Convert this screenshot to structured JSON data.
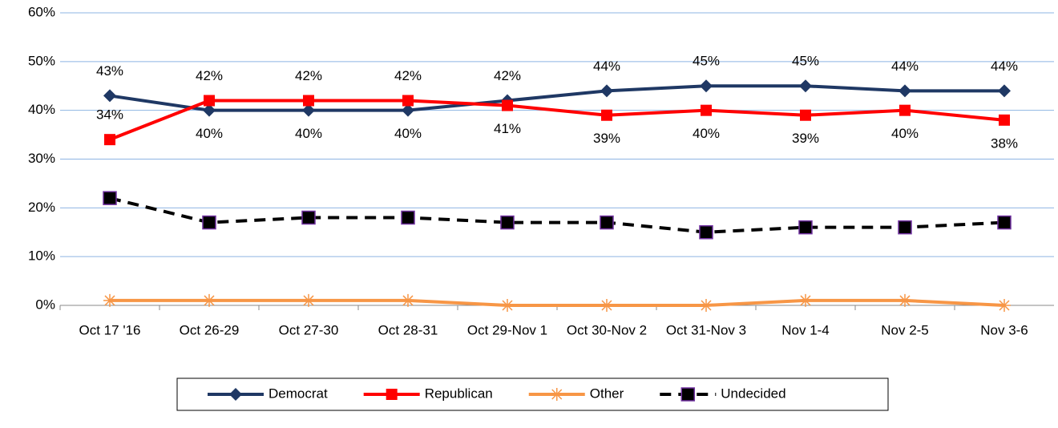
{
  "chart_data": {
    "type": "line",
    "categories": [
      "Oct 17 '16",
      "Oct 26-29",
      "Oct 27-30",
      "Oct 28-31",
      "Oct 29-Nov 1",
      "Oct 30-Nov 2",
      "Oct 31-Nov 3",
      "Nov 1-4",
      "Nov 2-5",
      "Nov 3-6"
    ],
    "series": [
      {
        "name": "Democrat",
        "color": "#1f3864",
        "marker": "diamond",
        "dashed": false,
        "values": [
          43,
          40,
          40,
          40,
          42,
          44,
          45,
          45,
          44,
          44
        ],
        "value_labels": [
          "43%",
          "40%",
          "40%",
          "40%",
          "42%",
          "44%",
          "45%",
          "45%",
          "44%",
          "44%"
        ]
      },
      {
        "name": "Republican",
        "color": "#ff0000",
        "marker": "square",
        "dashed": false,
        "values": [
          34,
          42,
          42,
          42,
          41,
          39,
          40,
          39,
          40,
          38
        ],
        "value_labels": [
          "34%",
          "42%",
          "42%",
          "42%",
          "41%",
          "39%",
          "40%",
          "39%",
          "40%",
          "38%"
        ]
      },
      {
        "name": "Other",
        "color": "#f79646",
        "marker": "star",
        "dashed": false,
        "values": [
          1,
          1,
          1,
          1,
          0,
          0,
          0,
          1,
          1,
          0
        ]
      },
      {
        "name": "Undecided",
        "color": "#000000",
        "marker": "square-outlined",
        "dashed": true,
        "values": [
          22,
          17,
          18,
          18,
          17,
          17,
          15,
          16,
          16,
          17
        ]
      }
    ],
    "ylim": [
      0,
      60
    ],
    "yticks": [
      {
        "value": 0,
        "label": "0%"
      },
      {
        "value": 10,
        "label": "10%"
      },
      {
        "value": 20,
        "label": "20%"
      },
      {
        "value": 30,
        "label": "30%"
      },
      {
        "value": 40,
        "label": "40%"
      },
      {
        "value": 50,
        "label": "50%"
      },
      {
        "value": 60,
        "label": "60%"
      }
    ],
    "grid": true,
    "legend": "bottom"
  }
}
